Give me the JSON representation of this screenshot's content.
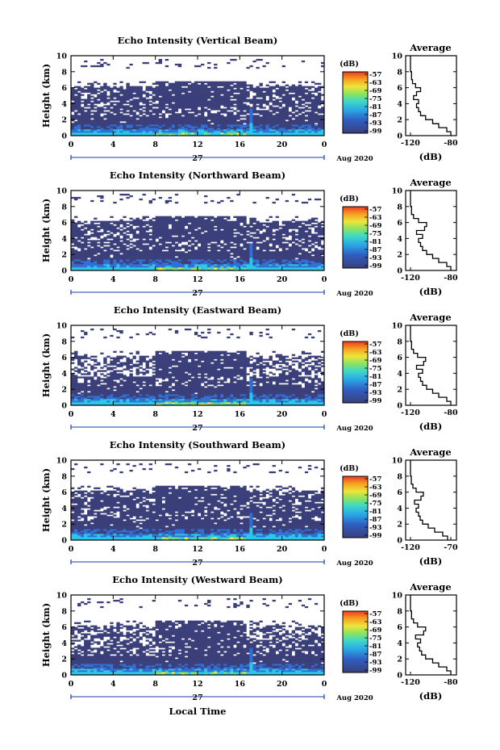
{
  "chart_data": [
    {
      "type": "heatmap",
      "title": "Echo Intensity (Vertical Beam)",
      "ylabel": "Height (km)",
      "xlabel": "",
      "xticks": [
        "0",
        "4",
        "8",
        "12",
        "16",
        "20",
        "0"
      ],
      "yticks": [
        "0",
        "2",
        "4",
        "6",
        "8",
        "10"
      ],
      "xlim": [
        0,
        24
      ],
      "ylim": [
        0,
        10
      ],
      "date_label": "27",
      "month_label": "Aug 2020",
      "colorbar": {
        "label": "(dB)",
        "ticks": [
          "-57",
          "-63",
          "-69",
          "-75",
          "-81",
          "-87",
          "-93",
          "-99"
        ]
      },
      "average_profile": {
        "title": "Average",
        "xlabel": "(dB)",
        "xticks": [
          "-120",
          "-80"
        ],
        "xlim": [
          -120,
          -80
        ],
        "yticks": [
          "0",
          "2",
          "4",
          "6",
          "8",
          "10"
        ],
        "height": [
          0,
          0.5,
          1,
          1.5,
          2,
          2.5,
          3,
          3.5,
          4,
          4.5,
          5,
          5.5,
          6,
          6.5,
          7,
          8,
          9,
          10
        ],
        "value": [
          -80,
          -84,
          -92,
          -98,
          -105,
          -110,
          -112,
          -114,
          -112,
          -117,
          -114,
          -110,
          -115,
          -118,
          -119,
          -120,
          -120,
          -120
        ]
      }
    },
    {
      "type": "heatmap",
      "title": "Echo Intensity (Northward Beam)",
      "ylabel": "Height (km)",
      "xlabel": "",
      "xticks": [
        "0",
        "4",
        "8",
        "12",
        "16",
        "20",
        "0"
      ],
      "yticks": [
        "0",
        "2",
        "4",
        "6",
        "8",
        "10"
      ],
      "xlim": [
        0,
        24
      ],
      "ylim": [
        0,
        10
      ],
      "date_label": "27",
      "month_label": "Aug 2020",
      "colorbar": {
        "label": "(dB)",
        "ticks": [
          "-57",
          "-63",
          "-69",
          "-75",
          "-81",
          "-87",
          "-93",
          "-99"
        ]
      },
      "average_profile": {
        "title": "Average",
        "xlabel": "(dB)",
        "xticks": [
          "-120",
          "-80"
        ],
        "xlim": [
          -120,
          -80
        ],
        "yticks": [
          "0",
          "2",
          "4",
          "6",
          "8",
          "10"
        ],
        "height": [
          0,
          0.5,
          1,
          1.5,
          2,
          2.5,
          3,
          3.5,
          4,
          4.5,
          5,
          5.5,
          6,
          6.5,
          7,
          8,
          9,
          10
        ],
        "value": [
          -80,
          -84,
          -92,
          -98,
          -104,
          -108,
          -110,
          -112,
          -108,
          -114,
          -106,
          -104,
          -112,
          -117,
          -119,
          -120,
          -120,
          -120
        ]
      }
    },
    {
      "type": "heatmap",
      "title": "Echo Intensity (Eastward Beam)",
      "ylabel": "Height (km)",
      "xlabel": "",
      "xticks": [
        "0",
        "4",
        "8",
        "12",
        "16",
        "20",
        "0"
      ],
      "yticks": [
        "0",
        "2",
        "4",
        "6",
        "8",
        "10"
      ],
      "xlim": [
        0,
        24
      ],
      "ylim": [
        0,
        10
      ],
      "date_label": "27",
      "month_label": "Aug 2020",
      "colorbar": {
        "label": "(dB)",
        "ticks": [
          "-57",
          "-63",
          "-69",
          "-75",
          "-81",
          "-87",
          "-93",
          "-99"
        ]
      },
      "average_profile": {
        "title": "Average",
        "xlabel": "(dB)",
        "xticks": [
          "-120",
          "-80"
        ],
        "xlim": [
          -120,
          -80
        ],
        "yticks": [
          "0",
          "2",
          "4",
          "6",
          "8",
          "10"
        ],
        "height": [
          0,
          0.5,
          1,
          1.5,
          2,
          2.5,
          3,
          3.5,
          4,
          4.5,
          5,
          5.5,
          6,
          6.5,
          7,
          8,
          9,
          10
        ],
        "value": [
          -80,
          -84,
          -92,
          -98,
          -104,
          -108,
          -110,
          -112,
          -108,
          -114,
          -107,
          -105,
          -113,
          -117,
          -119,
          -120,
          -120,
          -120
        ]
      }
    },
    {
      "type": "heatmap",
      "title": "Echo Intensity (Southward Beam)",
      "ylabel": "Height (km)",
      "xlabel": "",
      "xticks": [
        "0",
        "4",
        "8",
        "12",
        "16",
        "20",
        "0"
      ],
      "yticks": [
        "0",
        "2",
        "4",
        "6",
        "8",
        "10"
      ],
      "xlim": [
        0,
        24
      ],
      "ylim": [
        0,
        10
      ],
      "date_label": "27",
      "month_label": "Aug 2020",
      "colorbar": {
        "label": "(dB)",
        "ticks": [
          "-57",
          "-63",
          "-69",
          "-75",
          "-81",
          "-87",
          "-93",
          "-99"
        ]
      },
      "average_profile": {
        "title": "Average",
        "xlabel": "(dB)",
        "xticks": [
          "-120",
          "-70"
        ],
        "xlim": [
          -120,
          -70
        ],
        "yticks": [
          "0",
          "2",
          "4",
          "6",
          "8",
          "10"
        ],
        "height": [
          0,
          0.5,
          1,
          1.5,
          2,
          2.5,
          3,
          3.5,
          4,
          4.5,
          5,
          5.5,
          6,
          6.5,
          7,
          8,
          9,
          10
        ],
        "value": [
          -74,
          -80,
          -90,
          -98,
          -105,
          -108,
          -110,
          -113,
          -110,
          -115,
          -107,
          -104,
          -113,
          -117,
          -119,
          -120,
          -120,
          -120
        ]
      }
    },
    {
      "type": "heatmap",
      "title": "Echo Intensity (Westward Beam)",
      "ylabel": "Height (km)",
      "xlabel": "Local Time",
      "xticks": [
        "0",
        "4",
        "8",
        "12",
        "16",
        "20",
        "0"
      ],
      "yticks": [
        "0",
        "2",
        "4",
        "6",
        "8",
        "10"
      ],
      "xlim": [
        0,
        24
      ],
      "ylim": [
        0,
        10
      ],
      "date_label": "27",
      "month_label": "Aug 2020",
      "colorbar": {
        "label": "(dB)",
        "ticks": [
          "-57",
          "-63",
          "-69",
          "-75",
          "-81",
          "-87",
          "-93",
          "-99"
        ]
      },
      "average_profile": {
        "title": "Average",
        "xlabel": "(dB)",
        "xticks": [
          "-120",
          "-80"
        ],
        "xlim": [
          -120,
          -80
        ],
        "yticks": [
          "0",
          "2",
          "4",
          "6",
          "8",
          "10"
        ],
        "height": [
          0,
          0.5,
          1,
          1.5,
          2,
          2.5,
          3,
          3.5,
          4,
          4.5,
          5,
          5.5,
          6,
          6.5,
          7,
          8,
          9,
          10
        ],
        "value": [
          -80,
          -84,
          -92,
          -98,
          -105,
          -109,
          -111,
          -113,
          -110,
          -115,
          -107,
          -105,
          -113,
          -117,
          -119,
          -120,
          -120,
          -120
        ]
      }
    }
  ],
  "colors": {
    "dark": "#3a3f7a",
    "mid": "#2f6fd6",
    "cyan": "#29c7e8",
    "green": "#7de06a",
    "yellow": "#f2e93c",
    "orange": "#f5a020",
    "red": "#ee3a20"
  }
}
